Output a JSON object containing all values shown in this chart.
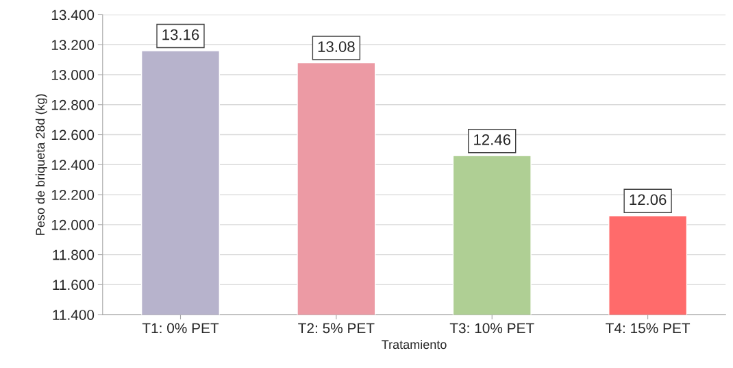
{
  "chart_data": {
    "type": "bar",
    "xlabel": "Tratamiento",
    "ylabel": "Peso de briqueta 28d (kg)",
    "categories": [
      "T1: 0% PET",
      "T2: 5% PET",
      "T3: 10% PET",
      "T4: 15% PET"
    ],
    "values": [
      13.16,
      13.08,
      12.46,
      12.06
    ],
    "colors": [
      "#b7b3cc",
      "#ec9aa4",
      "#afcf94",
      "#ff6b6b"
    ],
    "ylim": [
      11.4,
      13.4
    ],
    "yticks": [
      {
        "value": 11.4,
        "label": "11.400"
      },
      {
        "value": 11.6,
        "label": "11.600"
      },
      {
        "value": 11.8,
        "label": "11.800"
      },
      {
        "value": 12.0,
        "label": "12.000"
      },
      {
        "value": 12.2,
        "label": "12.200"
      },
      {
        "value": 12.4,
        "label": "12.400"
      },
      {
        "value": 12.6,
        "label": "12.600"
      },
      {
        "value": 12.8,
        "label": "12.800"
      },
      {
        "value": 13.0,
        "label": "13.000"
      },
      {
        "value": 13.2,
        "label": "13.200"
      },
      {
        "value": 13.4,
        "label": "13.400"
      }
    ],
    "grid": "y",
    "data_labels": true
  }
}
